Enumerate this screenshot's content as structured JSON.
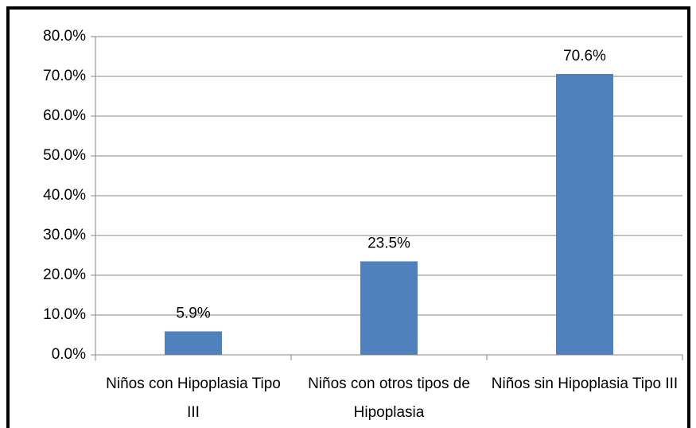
{
  "chart_data": {
    "type": "bar",
    "categories": [
      "Niños con Hipoplasia Tipo III",
      "Niños con otros tipos de Hipoplasia",
      "Niños sin Hipoplasia Tipo III"
    ],
    "values": [
      5.9,
      23.5,
      70.6
    ],
    "value_labels": [
      "5.9%",
      "23.5%",
      "70.6%"
    ],
    "color": "#4f81bd",
    "ylim": [
      0,
      80
    ],
    "yticks": [
      {
        "value": 0,
        "label": "0.0%"
      },
      {
        "value": 10,
        "label": "10.0%"
      },
      {
        "value": 20,
        "label": "20.0%"
      },
      {
        "value": 30,
        "label": "30.0%"
      },
      {
        "value": 40,
        "label": "40.0%"
      },
      {
        "value": 50,
        "label": "50.0%"
      },
      {
        "value": 60,
        "label": "60.0%"
      },
      {
        "value": 70,
        "label": "70.0%"
      },
      {
        "value": 80,
        "label": "80.0%"
      }
    ],
    "grid": true
  }
}
